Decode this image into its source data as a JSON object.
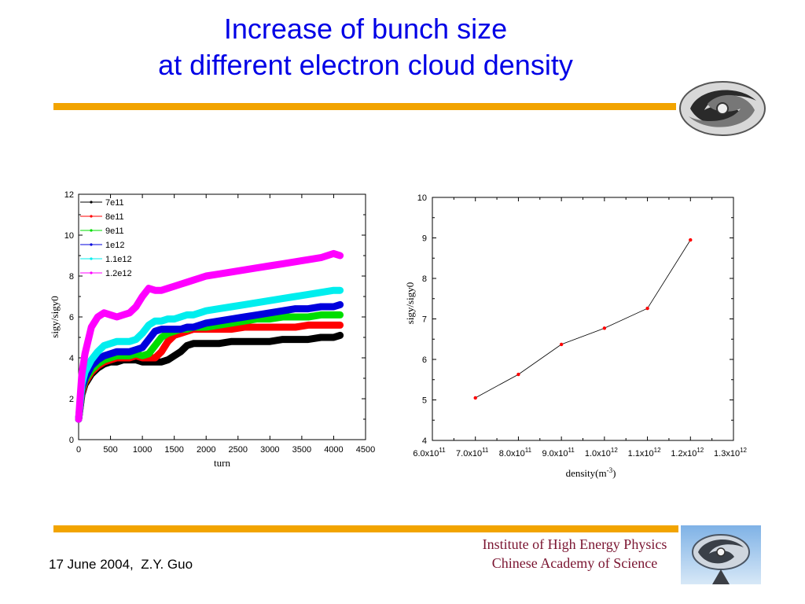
{
  "title": {
    "line1": "Increase of bunch size",
    "line2": "at different electron cloud density"
  },
  "footer": {
    "date_author": "17 June 2004,  Z.Y. Guo",
    "institute_line1": "Institute of High Energy Physics",
    "institute_line2": "Chinese Academy of Science"
  },
  "colors": {
    "title": "#0000e6",
    "rule": "#f2a400",
    "institute_text": "#7a1430"
  },
  "chart_data": [
    {
      "type": "line",
      "xlabel": "turn",
      "ylabel": "sigy/sigy0",
      "xlim": [
        0,
        4500
      ],
      "ylim": [
        0,
        12
      ],
      "xticks": [
        "0",
        "500",
        "1000",
        "1500",
        "2000",
        "2500",
        "3000",
        "3500",
        "4000",
        "4500"
      ],
      "yticks": [
        "0",
        "2",
        "4",
        "6",
        "8",
        "10",
        "12"
      ],
      "legend_position": "top-left",
      "x": [
        0,
        50,
        100,
        200,
        300,
        400,
        500,
        600,
        700,
        800,
        900,
        1000,
        1100,
        1200,
        1300,
        1400,
        1500,
        1600,
        1700,
        1800,
        1900,
        2000,
        2200,
        2400,
        2600,
        2800,
        3000,
        3200,
        3400,
        3600,
        3800,
        4000,
        4100
      ],
      "series": [
        {
          "name": "7e11",
          "color": "#000000",
          "values": [
            1.0,
            2.2,
            2.7,
            3.2,
            3.5,
            3.7,
            3.8,
            3.8,
            3.9,
            3.9,
            3.9,
            3.8,
            3.8,
            3.8,
            3.8,
            3.9,
            4.1,
            4.3,
            4.6,
            4.7,
            4.7,
            4.7,
            4.7,
            4.8,
            4.8,
            4.8,
            4.8,
            4.9,
            4.9,
            4.9,
            5.0,
            5.0,
            5.1
          ]
        },
        {
          "name": "8e11",
          "color": "#ff0000",
          "values": [
            1.0,
            2.3,
            2.8,
            3.3,
            3.6,
            3.8,
            3.9,
            4.0,
            4.0,
            4.0,
            4.1,
            4.0,
            4.0,
            4.0,
            4.3,
            4.8,
            5.1,
            5.2,
            5.3,
            5.4,
            5.4,
            5.4,
            5.4,
            5.4,
            5.5,
            5.5,
            5.5,
            5.5,
            5.5,
            5.6,
            5.6,
            5.6,
            5.6
          ]
        },
        {
          "name": "9e11",
          "color": "#00dd00",
          "values": [
            1.0,
            2.4,
            2.9,
            3.4,
            3.7,
            3.9,
            4.0,
            4.1,
            4.1,
            4.1,
            4.2,
            4.1,
            4.2,
            4.6,
            5.0,
            5.2,
            5.3,
            5.4,
            5.4,
            5.5,
            5.5,
            5.5,
            5.6,
            5.7,
            5.8,
            5.9,
            5.9,
            6.0,
            6.0,
            6.0,
            6.1,
            6.1,
            6.1
          ]
        },
        {
          "name": "1e12",
          "color": "#0000dd",
          "values": [
            1.0,
            2.5,
            3.0,
            3.6,
            3.9,
            4.1,
            4.2,
            4.3,
            4.3,
            4.3,
            4.4,
            4.5,
            4.9,
            5.3,
            5.4,
            5.4,
            5.4,
            5.4,
            5.5,
            5.5,
            5.6,
            5.7,
            5.8,
            5.9,
            6.0,
            6.1,
            6.2,
            6.3,
            6.4,
            6.4,
            6.5,
            6.5,
            6.6
          ]
        },
        {
          "name": "1.1e12",
          "color": "#00eeee",
          "values": [
            1.0,
            2.7,
            3.3,
            3.9,
            4.3,
            4.6,
            4.7,
            4.8,
            4.8,
            4.8,
            4.9,
            5.2,
            5.6,
            5.8,
            5.8,
            5.9,
            5.9,
            6.0,
            6.1,
            6.1,
            6.2,
            6.3,
            6.4,
            6.5,
            6.6,
            6.7,
            6.8,
            6.9,
            7.0,
            7.1,
            7.2,
            7.3,
            7.3
          ]
        },
        {
          "name": "1.2e12",
          "color": "#ff00ff",
          "values": [
            1.0,
            3.2,
            4.2,
            5.5,
            6.0,
            6.2,
            6.1,
            6.0,
            6.1,
            6.2,
            6.5,
            7.0,
            7.4,
            7.3,
            7.3,
            7.4,
            7.5,
            7.6,
            7.7,
            7.8,
            7.9,
            8.0,
            8.1,
            8.2,
            8.3,
            8.4,
            8.5,
            8.6,
            8.7,
            8.8,
            8.9,
            9.1,
            9.0
          ]
        }
      ]
    },
    {
      "type": "scatter",
      "xlabel": "density(m",
      "xlabel_sup": "-3",
      "xlabel_close": ")",
      "ylabel": "sigy/sigy0",
      "xlim": [
        600000000000.0,
        1300000000000.0
      ],
      "ylim": [
        4,
        10
      ],
      "xticks": [
        {
          "base": "6.0x10",
          "exp": "11"
        },
        {
          "base": "7.0x10",
          "exp": "11"
        },
        {
          "base": "8.0x10",
          "exp": "11"
        },
        {
          "base": "9.0x10",
          "exp": "11"
        },
        {
          "base": "1.0x10",
          "exp": "12"
        },
        {
          "base": "1.1x10",
          "exp": "12"
        },
        {
          "base": "1.2x10",
          "exp": "12"
        },
        {
          "base": "1.3x10",
          "exp": "12"
        }
      ],
      "yticks": [
        "4",
        "5",
        "6",
        "7",
        "8",
        "9",
        "10"
      ],
      "x": [
        700000000000.0,
        800000000000.0,
        900000000000.0,
        1000000000000.0,
        1100000000000.0,
        1200000000000.0
      ],
      "y": [
        5.05,
        5.63,
        6.37,
        6.77,
        7.26,
        8.95
      ],
      "point_color": "#ff0000",
      "line_color": "#000000"
    }
  ]
}
